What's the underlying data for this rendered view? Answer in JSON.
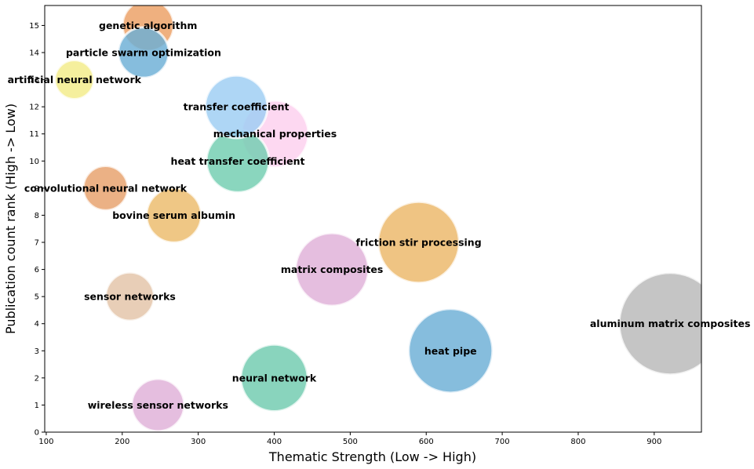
{
  "chart_data": {
    "type": "scatter",
    "title": "",
    "xlabel": "Thematic Strength (Low -> High)",
    "ylabel": "Publication count rank (High -> Low)",
    "xlim": [
      98,
      962
    ],
    "ylim": [
      0,
      15.65
    ],
    "xticks": [
      100,
      200,
      300,
      400,
      500,
      600,
      700,
      800,
      900
    ],
    "yticks": [
      0,
      1,
      2,
      3,
      4,
      5,
      6,
      7,
      8,
      9,
      10,
      11,
      12,
      13,
      14,
      15
    ],
    "grid": false,
    "legend": "none",
    "points": [
      {
        "label": "aluminum matrix composites",
        "x": 921,
        "y": 4,
        "size": 932,
        "color": "#b8b8b8"
      },
      {
        "label": "heat pipe",
        "x": 632,
        "y": 3,
        "size": 632,
        "color": "#6baed6"
      },
      {
        "label": "friction stir processing",
        "x": 590,
        "y": 7,
        "size": 590,
        "color": "#ebb768"
      },
      {
        "label": "matrix composites",
        "x": 476,
        "y": 6,
        "size": 476,
        "color": "#dfb0d8"
      },
      {
        "label": "neural network",
        "x": 400,
        "y": 2,
        "size": 400,
        "color": "#6fcbae"
      },
      {
        "label": "mechanical properties",
        "x": 401,
        "y": 11,
        "size": 401,
        "color": "#fccfee"
      },
      {
        "label": "heat transfer coefficient",
        "x": 352,
        "y": 10,
        "size": 352,
        "color": "#70cdb0"
      },
      {
        "label": "transfer coefficient",
        "x": 350,
        "y": 12,
        "size": 350,
        "color": "#9ccdf3"
      },
      {
        "label": "bovine serum albumin",
        "x": 268,
        "y": 8,
        "size": 268,
        "color": "#ecbb6a"
      },
      {
        "label": "wireless sensor networks",
        "x": 247,
        "y": 1,
        "size": 247,
        "color": "#dfb0d8"
      },
      {
        "label": "genetic algorithm",
        "x": 234,
        "y": 15,
        "size": 234,
        "color": "#eb9f63"
      },
      {
        "label": "particle swarm optimization",
        "x": 228,
        "y": 14,
        "size": 228,
        "color": "#6baed6"
      },
      {
        "label": "sensor networks",
        "x": 210,
        "y": 5,
        "size": 210,
        "color": "#e3c3a7"
      },
      {
        "label": "convolutional neural network",
        "x": 178,
        "y": 9,
        "size": 178,
        "color": "#e6a06a"
      },
      {
        "label": "artificial neural network",
        "x": 137,
        "y": 13,
        "size": 137,
        "color": "#f3eb88"
      }
    ]
  }
}
